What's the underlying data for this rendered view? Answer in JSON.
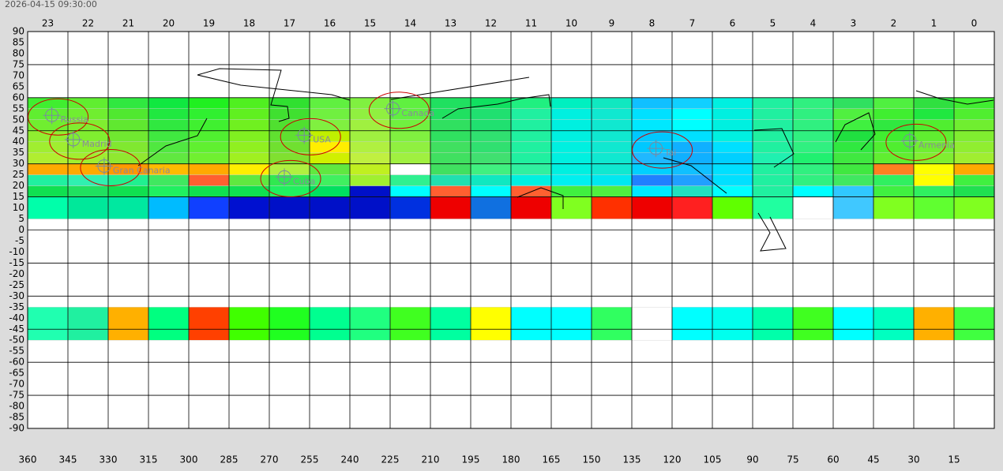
{
  "chart_data": {
    "type": "skymap",
    "timestamp": "2026-04-15 09:30:00",
    "xlim": [
      360,
      0
    ],
    "ylim": [
      -90,
      90
    ],
    "xticks": [
      360,
      345,
      330,
      315,
      300,
      285,
      270,
      255,
      240,
      225,
      210,
      195,
      180,
      165,
      150,
      135,
      120,
      105,
      90,
      75,
      60,
      45,
      30,
      15
    ],
    "yticks": [
      90,
      85,
      80,
      75,
      70,
      65,
      60,
      55,
      50,
      45,
      40,
      35,
      30,
      25,
      20,
      15,
      10,
      5,
      0,
      -5,
      -10,
      -15,
      -20,
      -25,
      -30,
      -35,
      -40,
      -45,
      -50,
      -55,
      -60,
      -65,
      -70,
      -75,
      -80,
      -85,
      -90
    ],
    "hour_labels": [
      23,
      22,
      21,
      20,
      19,
      18,
      17,
      16,
      15,
      14,
      13,
      12,
      11,
      10,
      9,
      8,
      7,
      6,
      5,
      4,
      3,
      2,
      1,
      0
    ],
    "grid_step": 15,
    "cell_rows": [
      {
        "lat": [
          55,
          60
        ],
        "colors": [
          "#40ee30",
          "#60ee30",
          "#30e840",
          "#10e840",
          "#20f020",
          "#50f020",
          "#30e030",
          "#60f040",
          "#80f040",
          "#60f040",
          "#20e060",
          "#10e060",
          "#20f080",
          "#00f0c0",
          "#10e8c0",
          "#10c0ff",
          "#10d0ff",
          "#00f0e0",
          "#20f0a0",
          "#30f080",
          "#30e060",
          "#50f040",
          "#30e040",
          "#40ee30"
        ]
      },
      {
        "lat": [
          50,
          55
        ],
        "colors": [
          "#60ee30",
          "#70ee30",
          "#50e830",
          "#20e840",
          "#30f030",
          "#60f020",
          "#40e030",
          "#70f040",
          "#90f040",
          "#60f040",
          "#20e060",
          "#20e070",
          "#20f0a0",
          "#00f0e0",
          "#10e8d0",
          "#00e0ff",
          "#00ffff",
          "#00f0e0",
          "#20f0a0",
          "#30f080",
          "#50f040",
          "#40ee30",
          "#20e840",
          "#50ee30"
        ]
      },
      {
        "lat": [
          45,
          50
        ],
        "colors": [
          "#70ee30",
          "#80ee30",
          "#60e830",
          "#30e840",
          "#40f030",
          "#70f020",
          "#50e030",
          "#80f040",
          "#a0f040",
          "#70f040",
          "#30e060",
          "#20e070",
          "#20f0a0",
          "#00f0e0",
          "#10e8d0",
          "#00e8ff",
          "#00ffff",
          "#00f0e0",
          "#20f0a0",
          "#30f080",
          "#40f040",
          "#30e840",
          "#50ee30",
          "#70ee30"
        ]
      },
      {
        "lat": [
          40,
          45
        ],
        "colors": [
          "#90ee30",
          "#80ee30",
          "#70e830",
          "#40e840",
          "#50f030",
          "#80f020",
          "#60e030",
          "#c0f000",
          "#a0f040",
          "#80f040",
          "#30e060",
          "#30e070",
          "#20f0a0",
          "#00f0e0",
          "#10e8d0",
          "#00c8ff",
          "#00e0ff",
          "#00f0e0",
          "#20f0a0",
          "#30f080",
          "#20e040",
          "#40ee30",
          "#60ee30",
          "#80ee30"
        ]
      },
      {
        "lat": [
          35,
          40
        ],
        "colors": [
          "#a0ee30",
          "#90ee30",
          "#80e830",
          "#50e840",
          "#60f030",
          "#90f020",
          "#70e030",
          "#ffee00",
          "#b0f040",
          "#90f040",
          "#40e060",
          "#30e070",
          "#20f0a0",
          "#00f0e0",
          "#10e8d0",
          "#00c8ff",
          "#10b0ff",
          "#00e0ff",
          "#20f0a0",
          "#30f080",
          "#30e840",
          "#50ee30",
          "#70ee30",
          "#90ee30"
        ]
      },
      {
        "lat": [
          30,
          35
        ],
        "colors": [
          "#b0ee30",
          "#a0ee30",
          "#90e830",
          "#60e840",
          "#70f030",
          "#a0f020",
          "#80e030",
          "#d0f000",
          "#c0f040",
          "#a0f040",
          "#40e060",
          "#40e070",
          "#20f0a0",
          "#00f0e0",
          "#10e8d0",
          "#20b8ff",
          "#10b0ff",
          "#00d0ff",
          "#20f0b0",
          "#20f070",
          "#40e840",
          "#60ee30",
          "#80ee30",
          "#a0ee30"
        ]
      },
      {
        "lat": [
          25,
          30
        ],
        "colors": [
          "#ffaa00",
          "#ffaa00",
          "#ff9900",
          "#ffbb00",
          "#ffaa00",
          "#ffee00",
          "#b0f040",
          "#60e840",
          "#c0f020",
          "#ffffff",
          "#40e060",
          "#40f080",
          "#30f0a0",
          "#00f0e0",
          "#10e8d0",
          "#00d0ff",
          "#10c0ff",
          "#00e0ff",
          "#20f0a0",
          "#30f080",
          "#40e840",
          "#ff8020",
          "#ffff00",
          "#ffaa00"
        ]
      },
      {
        "lat": [
          20,
          25
        ],
        "colors": [
          "#20f0a0",
          "#30f0b0",
          "#20f090",
          "#40e860",
          "#ff6030",
          "#60e840",
          "#30e850",
          "#40f060",
          "#a0f030",
          "#30f090",
          "#20e0b0",
          "#10e8c0",
          "#00f0e0",
          "#00f0f0",
          "#00e8f0",
          "#2080ff",
          "#20a0ff",
          "#00e0ff",
          "#20f0a0",
          "#30f080",
          "#40e860",
          "#30f060",
          "#ffff00",
          "#40f040"
        ]
      },
      {
        "lat": [
          15,
          20
        ],
        "colors": [
          "#10e050",
          "#20e060",
          "#10e050",
          "#20f060",
          "#10e050",
          "#10e050",
          "#20f060",
          "#00e060",
          "#0010c8",
          "#00ffff",
          "#ff6030",
          "#00ffff",
          "#ff6030",
          "#40f040",
          "#50f040",
          "#00e8ff",
          "#20e0c0",
          "#00ffff",
          "#20f0a0",
          "#00ffff",
          "#30c8ff",
          "#40f040",
          "#30f060",
          "#20e050"
        ]
      },
      {
        "lat": [
          5,
          15
        ],
        "colors": [
          "#00ffaa",
          "#00e89a",
          "#00e8a0",
          "#00bbff",
          "#1040ff",
          "#0010d0",
          "#0010c8",
          "#0010c8",
          "#0010c8",
          "#0030e0",
          "#ee0000",
          "#1070e0",
          "#ee0000",
          "#80ff20",
          "#ff3000",
          "#ee0000",
          "#ff2020",
          "#60ff00",
          "#20ffa0",
          "#ffffff",
          "#40c8ff",
          "#80ff20",
          "#60ff30",
          "#80ff20"
        ]
      },
      {
        "lat": [
          -50,
          -35
        ],
        "colors": [
          "#20ffb0",
          "#20f0a0",
          "#ffb000",
          "#00ff80",
          "#ff4000",
          "#40ff00",
          "#20ff20",
          "#00ff90",
          "#20ff80",
          "#40ff20",
          "#00ffa0",
          "#ffff00",
          "#00ffff",
          "#00ffff",
          "#30ff60",
          "#ffffff",
          "#00ffff",
          "#00ffee",
          "#00ffaa",
          "#40ff20",
          "#00ffff",
          "#00ffc0",
          "#ffb000",
          "#40ff40"
        ]
      }
    ],
    "cell_line_color": "#d0d0d0",
    "sites": [
      {
        "label": "Russia",
        "lon": 351,
        "lat": 52
      },
      {
        "label": "Madrid",
        "lon": 343,
        "lat": 41
      },
      {
        "label": "Gran Canaria",
        "lon": 331.5,
        "lat": 29
      },
      {
        "label": "USA",
        "lon": 257,
        "lat": 43
      },
      {
        "label": "Cuba",
        "lon": 264.4,
        "lat": 24
      },
      {
        "label": "Canada",
        "lon": 224,
        "lat": 55
      },
      {
        "label": "Tai",
        "lon": 126,
        "lat": 37
      },
      {
        "label": "Armenia",
        "lon": 31.5,
        "lat": 40.5
      }
    ],
    "site_ring_color": "#cc0000"
  }
}
